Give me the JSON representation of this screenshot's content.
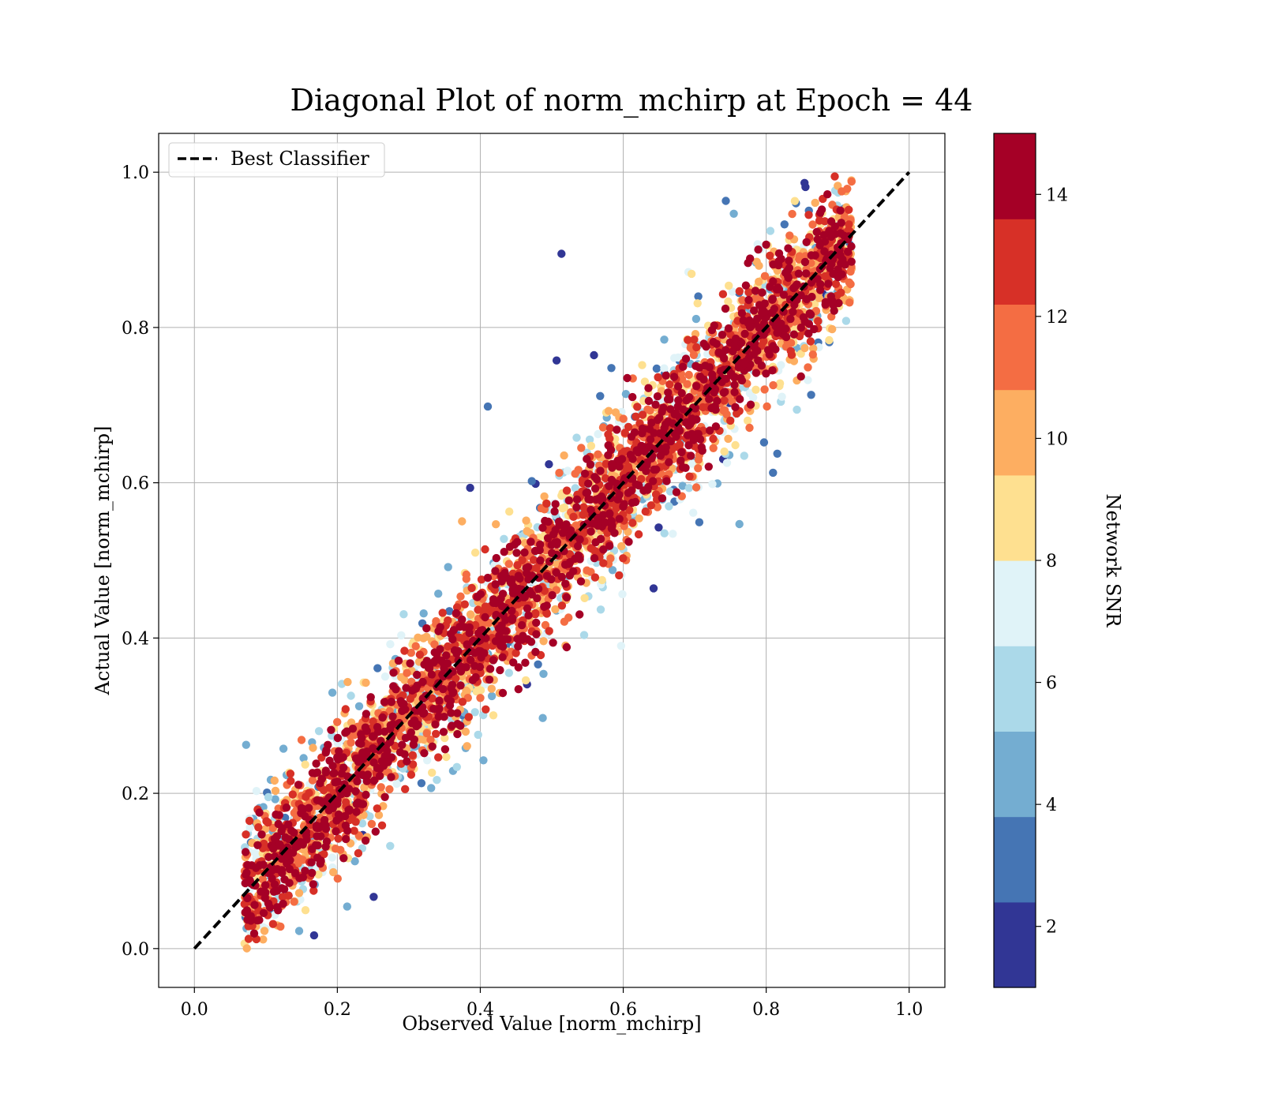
{
  "chart_data": {
    "type": "scatter",
    "title": "Diagonal Plot of norm_mchirp at Epoch = 44",
    "xlabel": "Observed Value [norm_mchirp]",
    "ylabel": "Actual Value [norm_mchirp]",
    "xlim": [
      -0.05,
      1.05
    ],
    "ylim": [
      -0.05,
      1.05
    ],
    "xticks": [
      "0.0",
      "0.2",
      "0.4",
      "0.6",
      "0.8",
      "1.0"
    ],
    "yticks": [
      "0.0",
      "0.2",
      "0.4",
      "0.6",
      "0.8",
      "1.0"
    ],
    "grid": true,
    "reference_line": {
      "name": "Best Classifier",
      "x": [
        0.0,
        1.0
      ],
      "y": [
        0.0,
        1.0
      ],
      "style": "dashed",
      "color": "#000000"
    },
    "legend": {
      "placement": "top-left",
      "entries": [
        "Best Classifier"
      ]
    },
    "colorbar": {
      "label": "Network SNR",
      "range": [
        1,
        15
      ],
      "ticks": [
        "2",
        "4",
        "6",
        "8",
        "10",
        "12",
        "14"
      ],
      "bin_colors": [
        "#313695",
        "#4575b4",
        "#74add1",
        "#abd9e9",
        "#e0f3f8",
        "#fee090",
        "#fdae61",
        "#f46d43",
        "#d73027",
        "#a50026"
      ]
    },
    "points": {
      "description_of_distribution": "dense band around y=x; high SNR (dark red) near diagonal, low SNR (blue) spread far from diagonal",
      "x_extent": [
        0.07,
        0.92
      ],
      "y_extent": [
        0.0,
        0.995
      ],
      "core_color": "#a50026"
    }
  }
}
